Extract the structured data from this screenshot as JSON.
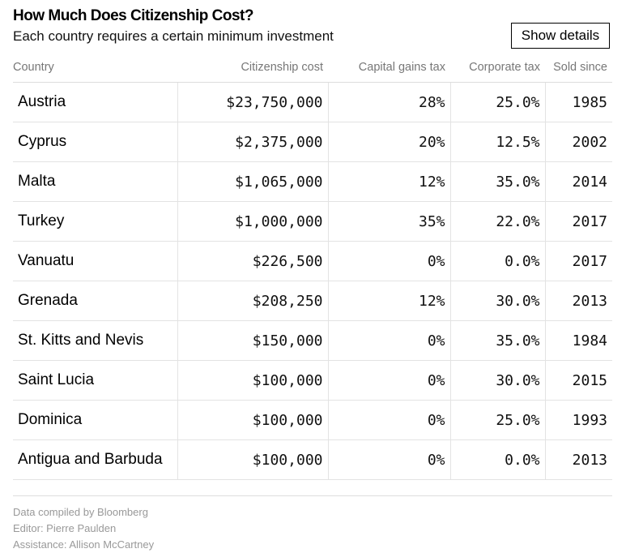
{
  "header": {
    "title": "How Much Does Citizenship Cost?",
    "subtitle": "Each country requires a certain minimum investment",
    "details_button": "Show details"
  },
  "chart_data": {
    "type": "table",
    "title": "How Much Does Citizenship Cost?",
    "subtitle": "Each country requires a certain minimum investment",
    "columns": [
      "Country",
      "Citizenship cost",
      "Capital gains tax",
      "Corporate tax",
      "Sold since"
    ],
    "rows": [
      [
        "Austria",
        "$23,750,000",
        "28%",
        "25.0%",
        "1985"
      ],
      [
        "Cyprus",
        "$2,375,000",
        "20%",
        "12.5%",
        "2002"
      ],
      [
        "Malta",
        "$1,065,000",
        "12%",
        "35.0%",
        "2014"
      ],
      [
        "Turkey",
        "$1,000,000",
        "35%",
        "22.0%",
        "2017"
      ],
      [
        "Vanuatu",
        "$226,500",
        "0%",
        "0.0%",
        "2017"
      ],
      [
        "Grenada",
        "$208,250",
        "12%",
        "30.0%",
        "2013"
      ],
      [
        "St. Kitts and Nevis",
        "$150,000",
        "0%",
        "35.0%",
        "1984"
      ],
      [
        "Saint Lucia",
        "$100,000",
        "0%",
        "30.0%",
        "2015"
      ],
      [
        "Dominica",
        "$100,000",
        "0%",
        "25.0%",
        "1993"
      ],
      [
        "Antigua and Barbuda",
        "$100,000",
        "0%",
        "0.0%",
        "2013"
      ]
    ]
  },
  "footer": {
    "lines": [
      "Data compiled by Bloomberg",
      "Editor: Pierre Paulden",
      "Assistance: Allison McCartney"
    ]
  }
}
